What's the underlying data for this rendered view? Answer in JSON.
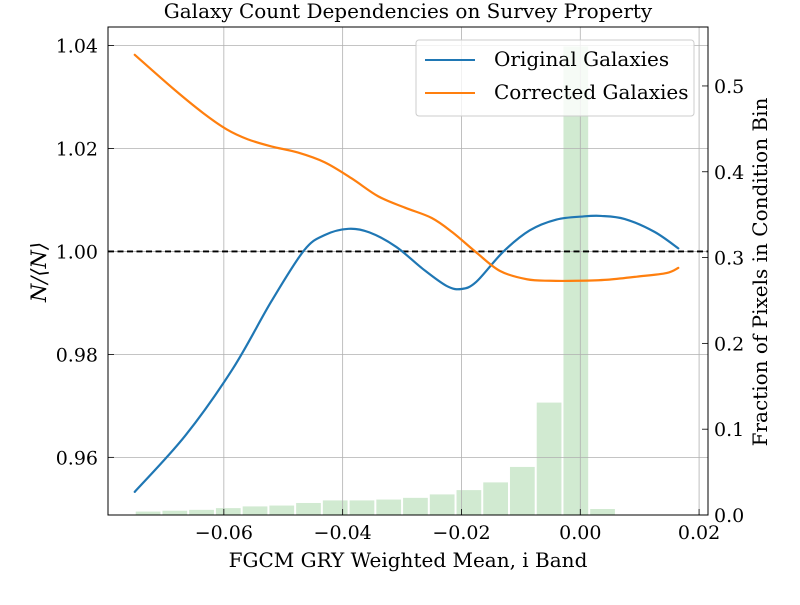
{
  "chart_data": {
    "type": "line",
    "title": "Galaxy Count Dependencies on Survey Property",
    "xlabel": "FGCM GRY Weighted Mean, i Band",
    "ylabel": "N/⟨N⟩",
    "ylabel_right": "Fraction of Pixels in Condition Bin",
    "xlim": [
      -0.0795,
      0.0215
    ],
    "ylim": [
      0.9488,
      1.0436
    ],
    "ylim_right": [
      0.0,
      0.5687
    ],
    "x_ticks": [
      -0.06,
      -0.04,
      -0.02,
      0.0,
      0.02
    ],
    "x_tick_labels": [
      "−0.06",
      "−0.04",
      "−0.02",
      "0.00",
      "0.02"
    ],
    "y_ticks": [
      0.96,
      0.98,
      1.0,
      1.02,
      1.04
    ],
    "y_tick_labels": [
      "0.96",
      "0.98",
      "1.00",
      "1.02",
      "1.04"
    ],
    "y2_ticks": [
      0.0,
      0.1,
      0.2,
      0.3,
      0.4,
      0.5
    ],
    "y2_tick_labels": [
      "0.0",
      "0.1",
      "0.2",
      "0.3",
      "0.4",
      "0.5"
    ],
    "grid": true,
    "legend_position": "upper-right",
    "reference_line": {
      "y": 1.0,
      "style": "dashed",
      "color": "#000000"
    },
    "series": [
      {
        "name": "Original Galaxies",
        "color": "#1f77b4",
        "x": [
          -0.075,
          -0.0665,
          -0.0585,
          -0.052,
          -0.0465,
          -0.043,
          -0.039,
          -0.0355,
          -0.031,
          -0.0265,
          -0.0225,
          -0.02,
          -0.0175,
          -0.013,
          -0.0085,
          -0.004,
          0.0005,
          0.0035,
          0.0075,
          0.0125,
          0.0165
        ],
        "y": [
          0.9533,
          0.9642,
          0.9772,
          0.9903,
          1.0002,
          1.0032,
          1.0044,
          1.0037,
          1.0009,
          0.9966,
          0.9933,
          0.9927,
          0.9941,
          0.9999,
          1.0041,
          1.0062,
          1.0068,
          1.0069,
          1.0063,
          1.0038,
          1.0006
        ]
      },
      {
        "name": "Corrected Galaxies",
        "color": "#ff7f0e",
        "x": [
          -0.075,
          -0.0685,
          -0.0635,
          -0.0595,
          -0.056,
          -0.052,
          -0.0475,
          -0.043,
          -0.0385,
          -0.034,
          -0.0295,
          -0.025,
          -0.0215,
          -0.0175,
          -0.0135,
          -0.009,
          -0.005,
          -0.0005,
          0.0045,
          0.0095,
          0.0145,
          0.0165
        ],
        "y": [
          1.0382,
          1.0316,
          1.0269,
          1.0237,
          1.0218,
          1.0204,
          1.0192,
          1.0173,
          1.0142,
          1.0107,
          1.0085,
          1.0065,
          1.0037,
          0.9998,
          0.9962,
          0.9946,
          0.9943,
          0.9943,
          0.9945,
          0.9951,
          0.9958,
          0.9968
        ]
      }
    ],
    "histogram": {
      "name": "Fraction of Pixels in Condition Bin",
      "color": "#2ca02c",
      "opacity": 0.22,
      "bin_edges": [
        -0.075,
        -0.0705,
        -0.066,
        -0.0615,
        -0.057,
        -0.0525,
        -0.048,
        -0.0435,
        -0.039,
        -0.0345,
        -0.03,
        -0.0255,
        -0.021,
        -0.0165,
        -0.012,
        -0.0075,
        -0.003,
        0.0015,
        0.006,
        0.0105,
        0.015
      ],
      "values": [
        0.004,
        0.005,
        0.006,
        0.008,
        0.01,
        0.011,
        0.014,
        0.017,
        0.017,
        0.018,
        0.02,
        0.024,
        0.029,
        0.038,
        0.056,
        0.131,
        0.546,
        0.007,
        0.0005,
        0.0002
      ]
    }
  }
}
